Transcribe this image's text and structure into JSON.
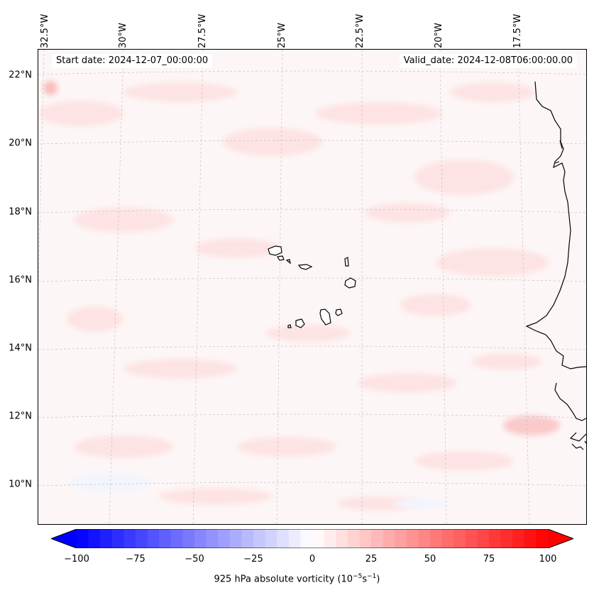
{
  "header": {
    "start_date": "Start date: 2024-12-07_00:00:00",
    "valid_date": "Valid_date: 2024-12-08T06:00:00.00"
  },
  "longitude_labels": [
    "32.5°W",
    "30°W",
    "27.5°W",
    "25°W",
    "22.5°W",
    "20°W",
    "17.5°W"
  ],
  "latitude_labels": [
    "22°N",
    "20°N",
    "18°N",
    "16°N",
    "14°N",
    "12°N",
    "10°N"
  ],
  "colorbar": {
    "title_prefix": "925 hPa absolute vorticity (10",
    "title_exp1": "−5",
    "title_mid": "s",
    "title_exp2": "−1",
    "title_suffix": ")",
    "tick_labels": [
      "−100",
      "−75",
      "−50",
      "−25",
      "0",
      "25",
      "50",
      "75",
      "100"
    ],
    "min": -100,
    "max": 100,
    "colors": {
      "low": "#0000ff",
      "mid": "#ffffff",
      "high": "#ff0000"
    }
  },
  "map_colors": {
    "background": "#fdf6f6",
    "light_red": "#fde4e4",
    "faint_blue": "#f3f5fd",
    "coast": "#000000",
    "grid": "#bbbbbb"
  }
}
